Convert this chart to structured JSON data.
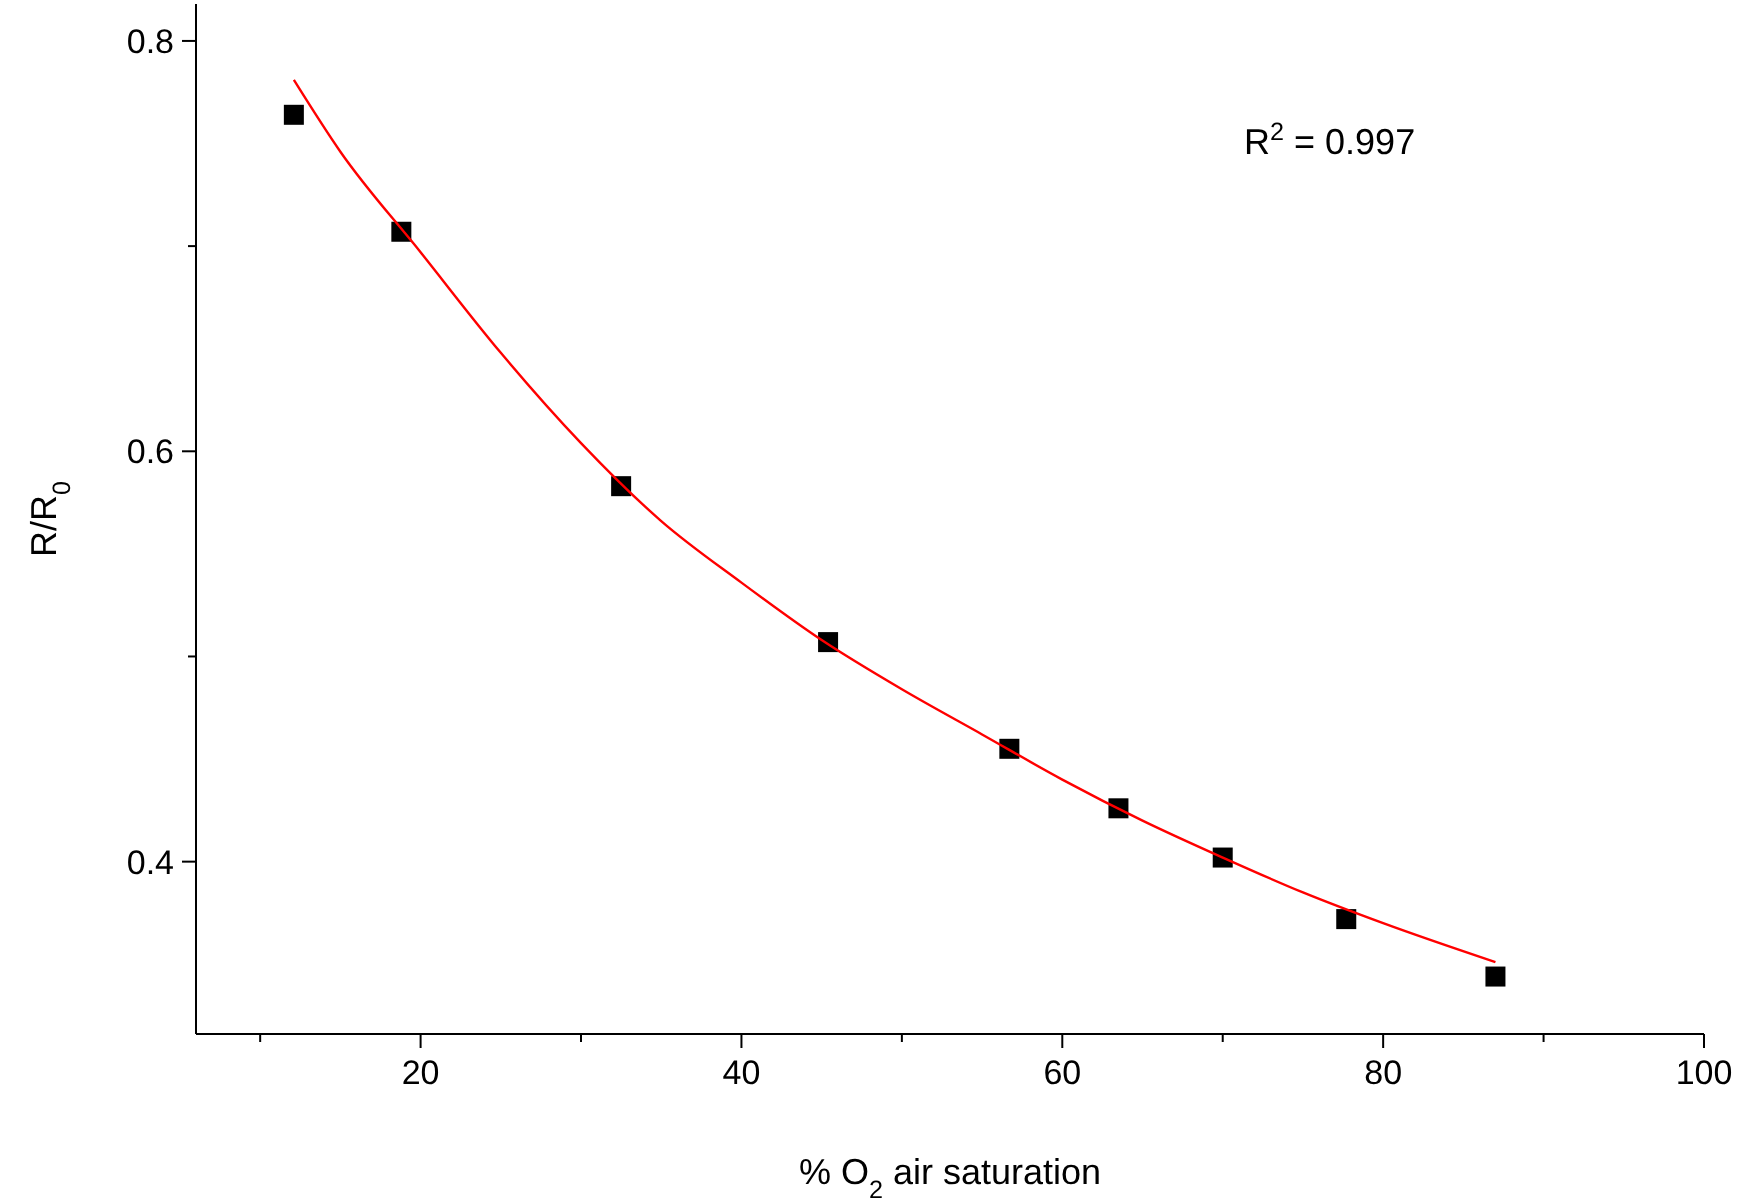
{
  "chart_data": {
    "type": "scatter",
    "xlabel": "% O$_{2}$ air saturation",
    "ylabel": "R/R$_{0}$",
    "annotations": [
      "R$^{2}$ = 0.997"
    ],
    "xlim": [
      6,
      100
    ],
    "xticks": [
      {
        "value": 10,
        "label": null
      },
      20,
      {
        "value": 30,
        "label": null
      },
      40,
      {
        "value": 50,
        "label": null
      },
      60,
      {
        "value": 70,
        "label": null
      },
      80,
      {
        "value": 90,
        "label": null
      },
      100
    ],
    "ylim": [
      0.316,
      0.818
    ],
    "yticks": [
      0.4,
      {
        "value": 0.5,
        "label": null
      },
      0.6,
      {
        "value": 0.7,
        "label": null
      },
      0.8
    ],
    "grid": false,
    "series": [
      {
        "marker": "square",
        "color": "#000000",
        "x": [
          12.1,
          18.8,
          32.5,
          45.4,
          56.7,
          63.5,
          70.0,
          77.7,
          87.0
        ],
        "values": [
          0.764,
          0.707,
          0.583,
          0.507,
          0.455,
          0.426,
          0.402,
          0.372,
          0.344
        ]
      },
      {
        "type": "line",
        "marker": "none",
        "color": "#ff0000",
        "x": [
          12.1,
          15,
          20,
          25,
          30,
          35,
          40,
          45,
          50,
          55,
          60,
          65,
          70,
          75,
          80,
          87
        ],
        "values": [
          0.781,
          0.746,
          0.697,
          0.648,
          0.604,
          0.566,
          0.536,
          0.508,
          0.484,
          0.462,
          0.44,
          0.42,
          0.402,
          0.385,
          0.37,
          0.351
        ]
      }
    ]
  }
}
